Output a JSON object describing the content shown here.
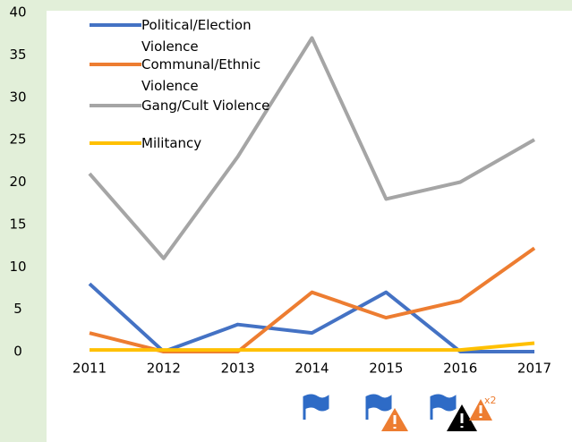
{
  "chart_data": {
    "type": "line",
    "categories": [
      "2011",
      "2012",
      "2013",
      "2014",
      "2015",
      "2016",
      "2017"
    ],
    "series": [
      {
        "name": "Political/Election Violence",
        "color": "#4472c4",
        "values": [
          8,
          0,
          3.2,
          2.2,
          7,
          0,
          0
        ]
      },
      {
        "name": "Communal/Ethnic Violence",
        "color": "#ed7d31",
        "values": [
          2.2,
          0,
          0,
          7,
          4,
          6,
          12.2
        ]
      },
      {
        "name": "Gang/Cult Violence",
        "color": "#a5a5a5",
        "values": [
          21,
          11,
          23,
          37,
          18,
          20,
          25
        ]
      },
      {
        "name": "Militancy",
        "color": "#ffc000",
        "values": [
          0.2,
          0.2,
          0.2,
          0.2,
          0.2,
          0.2,
          1
        ]
      }
    ],
    "ylim": [
      0,
      40
    ],
    "yticks": [
      0,
      5,
      10,
      15,
      20,
      25,
      30,
      35,
      40
    ],
    "grid": false,
    "legend": "top-left",
    "annotation": "x2"
  }
}
